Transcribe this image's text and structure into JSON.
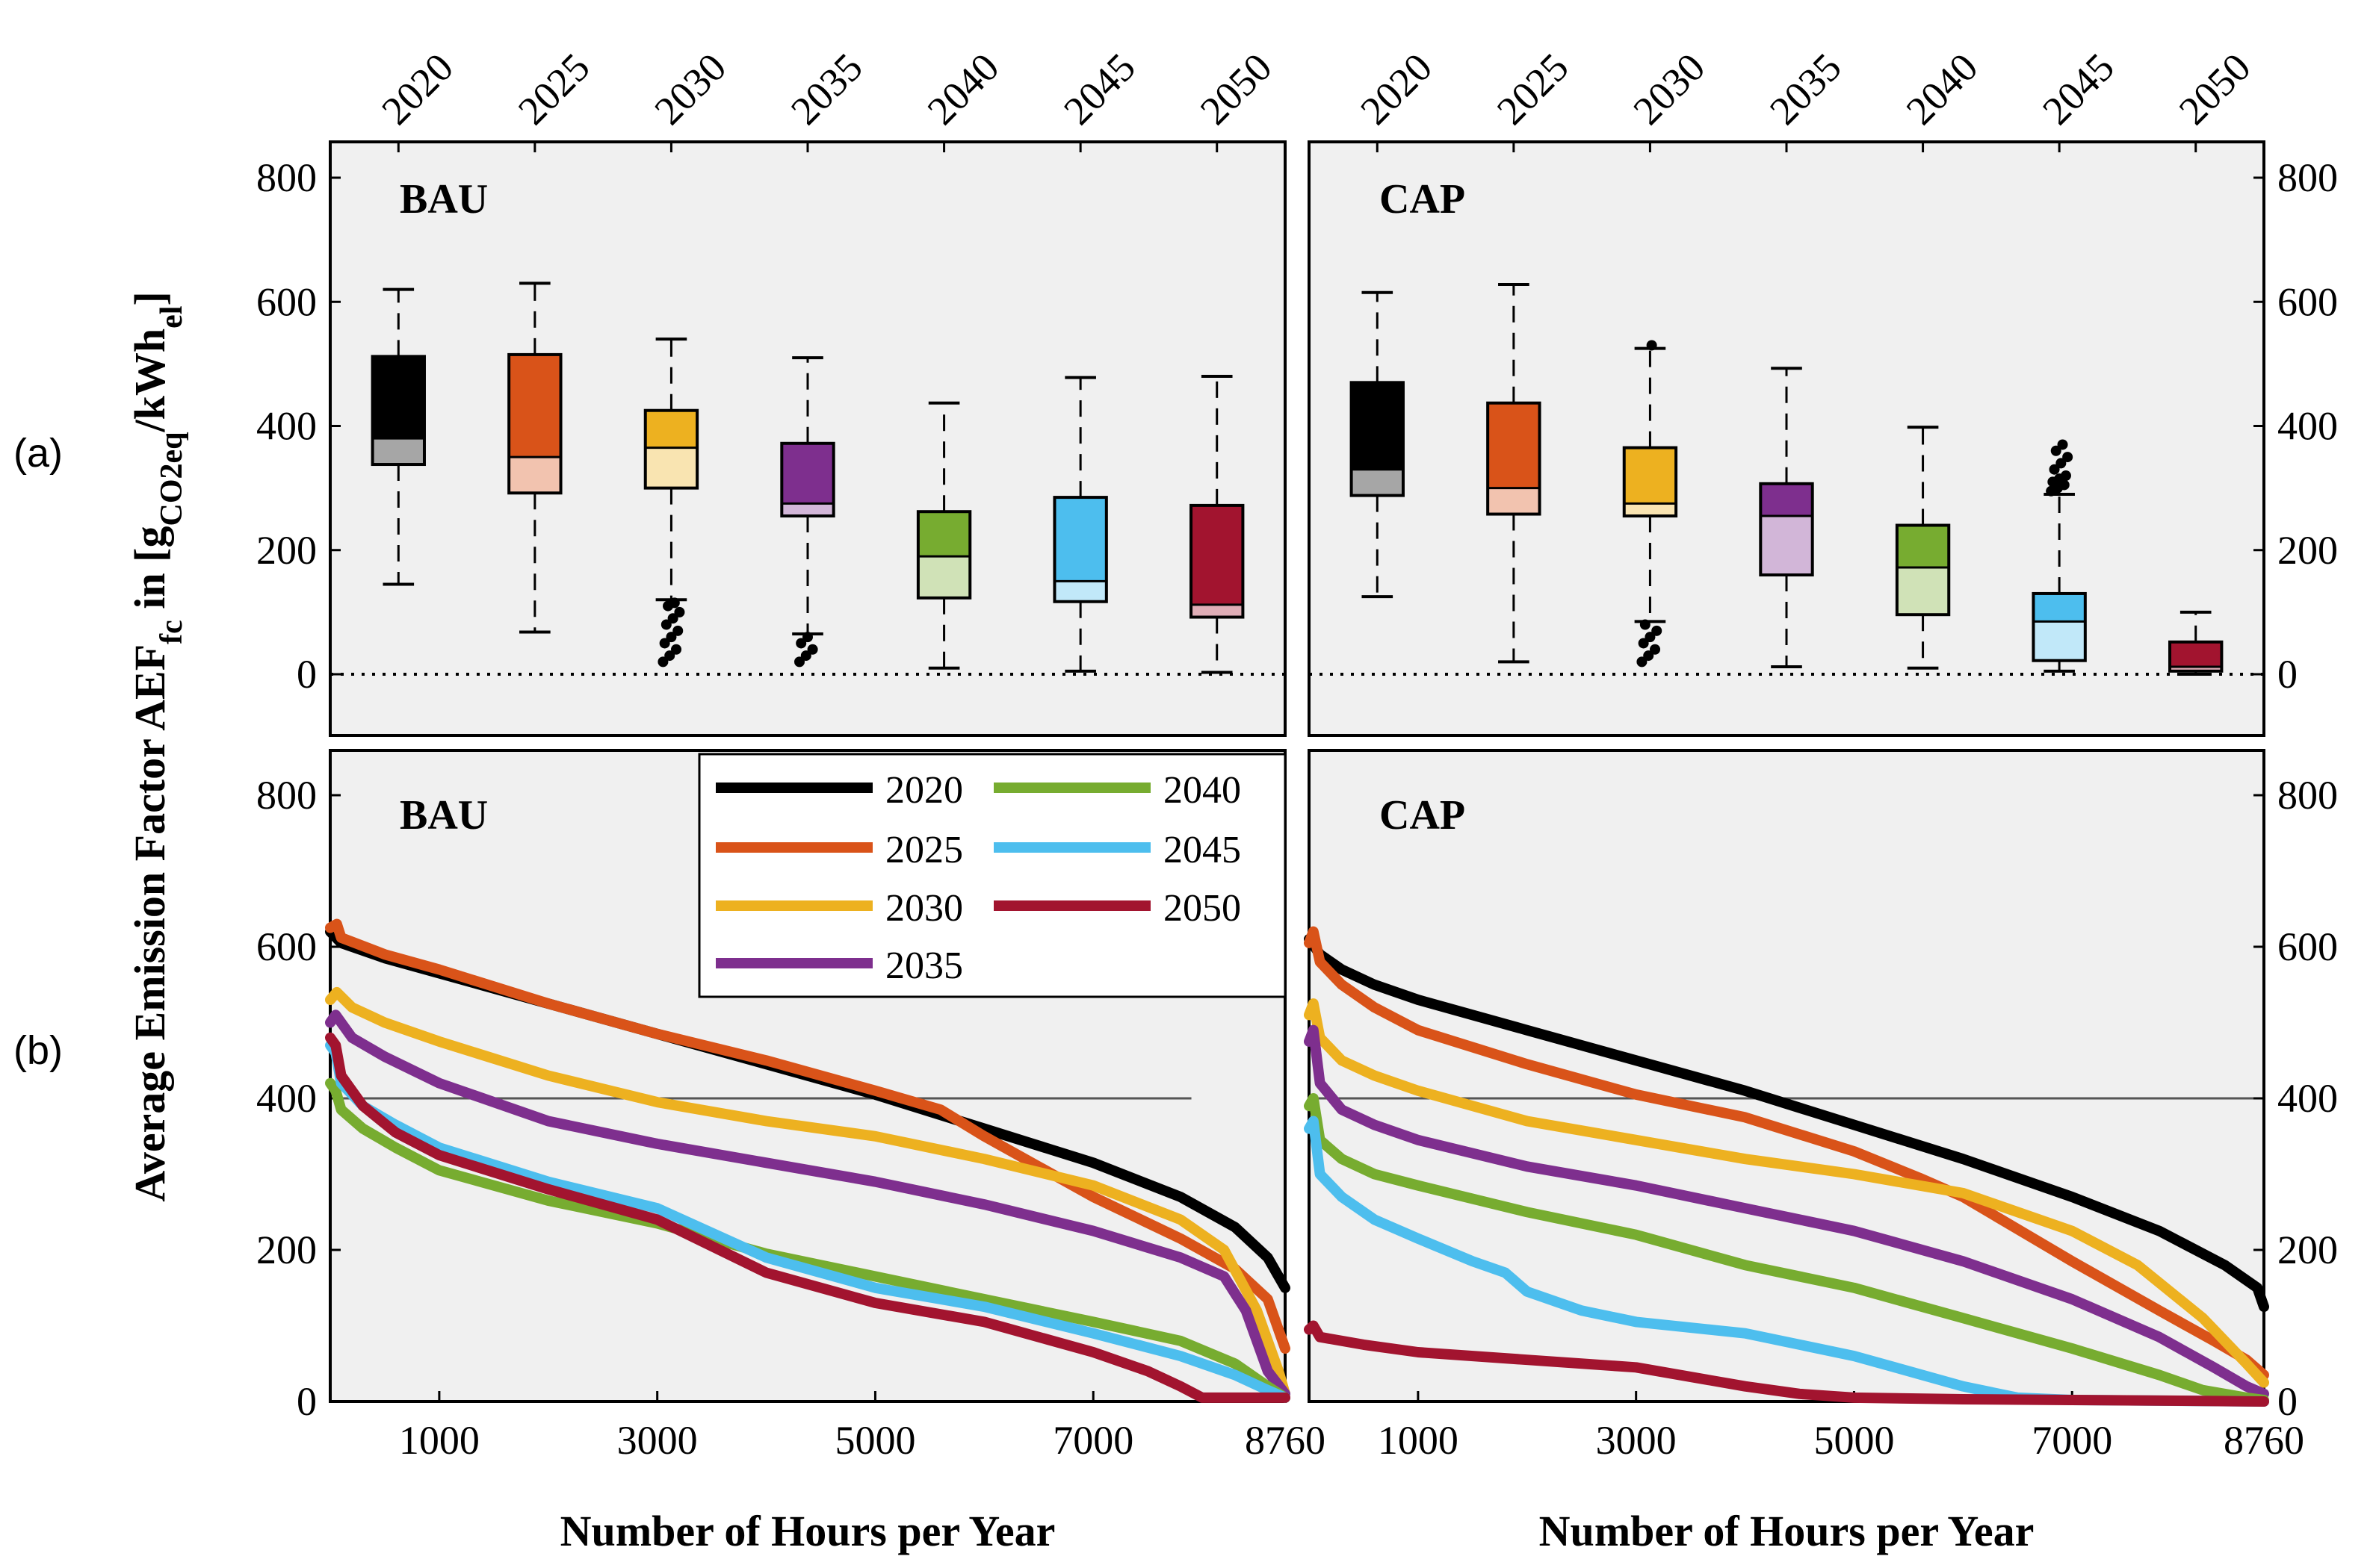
{
  "figure": {
    "ylabel_main": "Average Emission Factor AEF",
    "ylabel_sub_fc": "fc",
    "ylabel_in": " in [g",
    "ylabel_sub_co2": "CO2eq",
    "ylabel_per": "/kWh",
    "ylabel_sub_el": "el",
    "ylabel_close": "]",
    "row_label_a": "(a)",
    "row_label_b": "(b)"
  },
  "chart_data": [
    {
      "type": "box",
      "panel": "a-left",
      "title": "BAU",
      "categories": [
        "2020",
        "2025",
        "2030",
        "2035",
        "2040",
        "2045",
        "2050"
      ],
      "ylim": [
        -100,
        850
      ],
      "yticks": [
        0,
        200,
        400,
        600,
        800
      ],
      "zero_line": "dotted",
      "boxes": [
        {
          "year": "2020",
          "whisker_low": 145,
          "q1": 338,
          "median": 380,
          "q3": 512,
          "whisker_high": 620,
          "color": "#000000",
          "outliers": []
        },
        {
          "year": "2025",
          "whisker_low": 68,
          "q1": 292,
          "median": 350,
          "q3": 515,
          "whisker_high": 630,
          "color": "#D95319",
          "outliers": []
        },
        {
          "year": "2030",
          "whisker_low": 120,
          "q1": 300,
          "median": 365,
          "q3": 425,
          "whisker_high": 540,
          "color": "#EDB120",
          "outliers": [
            20,
            30,
            40,
            50,
            60,
            70,
            80,
            90,
            100,
            110,
            115
          ]
        },
        {
          "year": "2035",
          "whisker_low": 65,
          "q1": 255,
          "median": 275,
          "q3": 372,
          "whisker_high": 510,
          "color": "#7E2F8E",
          "outliers": [
            20,
            30,
            40,
            50,
            60
          ]
        },
        {
          "year": "2040",
          "whisker_low": 10,
          "q1": 123,
          "median": 190,
          "q3": 262,
          "whisker_high": 437,
          "color": "#77AC30",
          "outliers": []
        },
        {
          "year": "2045",
          "whisker_low": 5,
          "q1": 117,
          "median": 150,
          "q3": 285,
          "whisker_high": 478,
          "color": "#4DBEEE",
          "outliers": []
        },
        {
          "year": "2050",
          "whisker_low": 3,
          "q1": 92,
          "median": 112,
          "q3": 272,
          "whisker_high": 480,
          "color": "#A2142F",
          "outliers": []
        }
      ]
    },
    {
      "type": "box",
      "panel": "a-right",
      "title": "CAP",
      "categories": [
        "2020",
        "2025",
        "2030",
        "2035",
        "2040",
        "2045",
        "2050"
      ],
      "ylim": [
        -100,
        850
      ],
      "yticks": [
        0,
        200,
        400,
        600,
        800
      ],
      "zero_line": "dotted",
      "boxes": [
        {
          "year": "2020",
          "whisker_low": 125,
          "q1": 288,
          "median": 330,
          "q3": 470,
          "whisker_high": 615,
          "color": "#000000",
          "outliers": []
        },
        {
          "year": "2025",
          "whisker_low": 20,
          "q1": 258,
          "median": 300,
          "q3": 437,
          "whisker_high": 628,
          "color": "#D95319",
          "outliers": []
        },
        {
          "year": "2030",
          "whisker_low": 85,
          "q1": 255,
          "median": 275,
          "q3": 365,
          "whisker_high": 525,
          "color": "#EDB120",
          "outliers": [
            20,
            30,
            40,
            50,
            60,
            70,
            80,
            530
          ]
        },
        {
          "year": "2035",
          "whisker_low": 12,
          "q1": 160,
          "median": 255,
          "q3": 307,
          "whisker_high": 493,
          "color": "#7E2F8E",
          "outliers": []
        },
        {
          "year": "2040",
          "whisker_low": 10,
          "q1": 96,
          "median": 172,
          "q3": 240,
          "whisker_high": 398,
          "color": "#77AC30",
          "outliers": []
        },
        {
          "year": "2045",
          "whisker_low": 5,
          "q1": 22,
          "median": 85,
          "q3": 130,
          "whisker_high": 290,
          "color": "#4DBEEE",
          "outliers": [
            295,
            300,
            305,
            310,
            315,
            320,
            330,
            340,
            350,
            360,
            370
          ]
        },
        {
          "year": "2050",
          "whisker_low": 0,
          "q1": 5,
          "median": 12,
          "q3": 52,
          "whisker_high": 100,
          "color": "#A2142F",
          "outliers": []
        }
      ]
    },
    {
      "type": "line",
      "panel": "b-left",
      "title": "BAU",
      "xlabel": "Number of Hours per Year",
      "xlim": [
        0,
        8760
      ],
      "xticks": [
        1000,
        3000,
        5000,
        7000,
        8760
      ],
      "ylim": [
        0,
        850
      ],
      "yticks": [
        0,
        200,
        400,
        600,
        800
      ],
      "reference_line": {
        "y": 400,
        "x_end": 7900
      },
      "series": [
        {
          "name": "2020",
          "color": "#000000",
          "x": [
            0,
            100,
            500,
            1000,
            2000,
            3000,
            4000,
            5000,
            6000,
            7000,
            7800,
            8300,
            8600,
            8760
          ],
          "y": [
            620,
            605,
            585,
            565,
            525,
            485,
            445,
            405,
            360,
            315,
            270,
            230,
            190,
            150
          ]
        },
        {
          "name": "2025",
          "color": "#D95319",
          "x": [
            0,
            60,
            100,
            500,
            1000,
            2000,
            3000,
            4000,
            5000,
            5600,
            6000,
            7000,
            7800,
            8300,
            8600,
            8760
          ],
          "y": [
            625,
            630,
            612,
            590,
            570,
            525,
            485,
            450,
            410,
            385,
            350,
            270,
            215,
            175,
            135,
            70
          ]
        },
        {
          "name": "2030",
          "color": "#EDB120",
          "x": [
            0,
            60,
            200,
            500,
            1000,
            2000,
            3000,
            4000,
            5000,
            6000,
            7000,
            7800,
            8200,
            8500,
            8700,
            8760
          ],
          "y": [
            530,
            540,
            520,
            500,
            475,
            430,
            395,
            370,
            350,
            320,
            285,
            240,
            200,
            120,
            40,
            10
          ]
        },
        {
          "name": "2035",
          "color": "#7E2F8E",
          "x": [
            0,
            50,
            200,
            500,
            1000,
            2000,
            3000,
            4000,
            5000,
            6000,
            7000,
            7800,
            8200,
            8400,
            8600,
            8760
          ],
          "y": [
            500,
            510,
            480,
            455,
            420,
            370,
            340,
            315,
            290,
            260,
            225,
            190,
            165,
            120,
            40,
            10
          ]
        },
        {
          "name": "2040",
          "color": "#77AC30",
          "x": [
            0,
            50,
            100,
            300,
            600,
            1000,
            2000,
            3000,
            4000,
            5000,
            6000,
            7000,
            7800,
            8300,
            8600,
            8760
          ],
          "y": [
            420,
            410,
            385,
            360,
            335,
            305,
            265,
            235,
            195,
            165,
            135,
            105,
            80,
            50,
            20,
            5
          ]
        },
        {
          "name": "2045",
          "color": "#4DBEEE",
          "x": [
            0,
            50,
            100,
            300,
            600,
            1000,
            2000,
            3000,
            4000,
            5000,
            6000,
            7000,
            7800,
            8300,
            8600,
            8760
          ],
          "y": [
            470,
            460,
            420,
            390,
            365,
            335,
            290,
            255,
            190,
            150,
            125,
            90,
            60,
            35,
            15,
            5
          ]
        },
        {
          "name": "2050",
          "color": "#A2142F",
          "x": [
            0,
            50,
            100,
            300,
            600,
            1000,
            2000,
            3000,
            4000,
            5000,
            6000,
            7000,
            7500,
            7800,
            8000,
            8760
          ],
          "y": [
            480,
            470,
            430,
            390,
            355,
            325,
            280,
            240,
            170,
            130,
            105,
            65,
            40,
            20,
            5,
            5
          ]
        }
      ],
      "legend": {
        "placement": "top-right",
        "entries": [
          "2020",
          "2025",
          "2030",
          "2035",
          "2040",
          "2045",
          "2050"
        ]
      }
    },
    {
      "type": "line",
      "panel": "b-right",
      "title": "CAP",
      "xlabel": "Number of Hours per Year",
      "xlim": [
        0,
        8760
      ],
      "xticks": [
        1000,
        3000,
        5000,
        7000,
        8760
      ],
      "ylim": [
        0,
        850
      ],
      "yticks": [
        0,
        200,
        400,
        600,
        800
      ],
      "reference_line": {
        "y": 400,
        "x_end": 8760
      },
      "series": [
        {
          "name": "2020",
          "color": "#000000",
          "x": [
            0,
            100,
            300,
            600,
            1000,
            2000,
            3000,
            4000,
            5000,
            6000,
            7000,
            7800,
            8400,
            8700,
            8760
          ],
          "y": [
            610,
            590,
            570,
            550,
            530,
            490,
            450,
            410,
            365,
            320,
            270,
            225,
            180,
            150,
            125
          ]
        },
        {
          "name": "2025",
          "color": "#D95319",
          "x": [
            0,
            40,
            100,
            300,
            600,
            1000,
            2000,
            3000,
            4000,
            5000,
            5600,
            6000,
            7000,
            7800,
            8300,
            8600,
            8760
          ],
          "y": [
            605,
            620,
            580,
            550,
            520,
            490,
            445,
            405,
            375,
            330,
            295,
            270,
            185,
            120,
            80,
            55,
            35
          ]
        },
        {
          "name": "2030",
          "color": "#EDB120",
          "x": [
            0,
            40,
            100,
            300,
            600,
            1000,
            2000,
            3000,
            4000,
            5000,
            6000,
            7000,
            7600,
            8200,
            8600,
            8760
          ],
          "y": [
            510,
            525,
            480,
            450,
            430,
            410,
            370,
            345,
            320,
            300,
            275,
            225,
            180,
            110,
            50,
            25
          ]
        },
        {
          "name": "2035",
          "color": "#7E2F8E",
          "x": [
            0,
            40,
            100,
            300,
            600,
            1000,
            2000,
            3000,
            4000,
            5000,
            6000,
            7000,
            7800,
            8300,
            8600,
            8760
          ],
          "y": [
            475,
            490,
            420,
            385,
            365,
            345,
            310,
            285,
            255,
            225,
            185,
            135,
            85,
            45,
            20,
            10
          ]
        },
        {
          "name": "2040",
          "color": "#77AC30",
          "x": [
            0,
            40,
            100,
            300,
            600,
            1000,
            2000,
            3000,
            4000,
            5000,
            6000,
            7000,
            7800,
            8200,
            8600,
            8760
          ],
          "y": [
            390,
            400,
            345,
            320,
            300,
            285,
            250,
            220,
            180,
            150,
            110,
            70,
            35,
            15,
            5,
            2
          ]
        },
        {
          "name": "2045",
          "color": "#4DBEEE",
          "x": [
            0,
            40,
            100,
            300,
            600,
            1000,
            1500,
            1800,
            2000,
            2500,
            3000,
            4000,
            5000,
            6000,
            6500,
            7000,
            8760
          ],
          "y": [
            360,
            370,
            300,
            270,
            240,
            215,
            185,
            170,
            145,
            120,
            105,
            90,
            60,
            20,
            5,
            2,
            0
          ]
        },
        {
          "name": "2050",
          "color": "#A2142F",
          "x": [
            0,
            40,
            100,
            500,
            1000,
            2000,
            3000,
            4000,
            4500,
            5000,
            6000,
            7000,
            8000,
            8760
          ],
          "y": [
            95,
            100,
            85,
            75,
            65,
            55,
            45,
            20,
            10,
            5,
            3,
            2,
            1,
            0
          ]
        }
      ]
    }
  ],
  "legend_labels": {
    "l2020": "2020",
    "l2025": "2025",
    "l2030": "2030",
    "l2035": "2035",
    "l2040": "2040",
    "l2045": "2045",
    "l2050": "2050"
  }
}
